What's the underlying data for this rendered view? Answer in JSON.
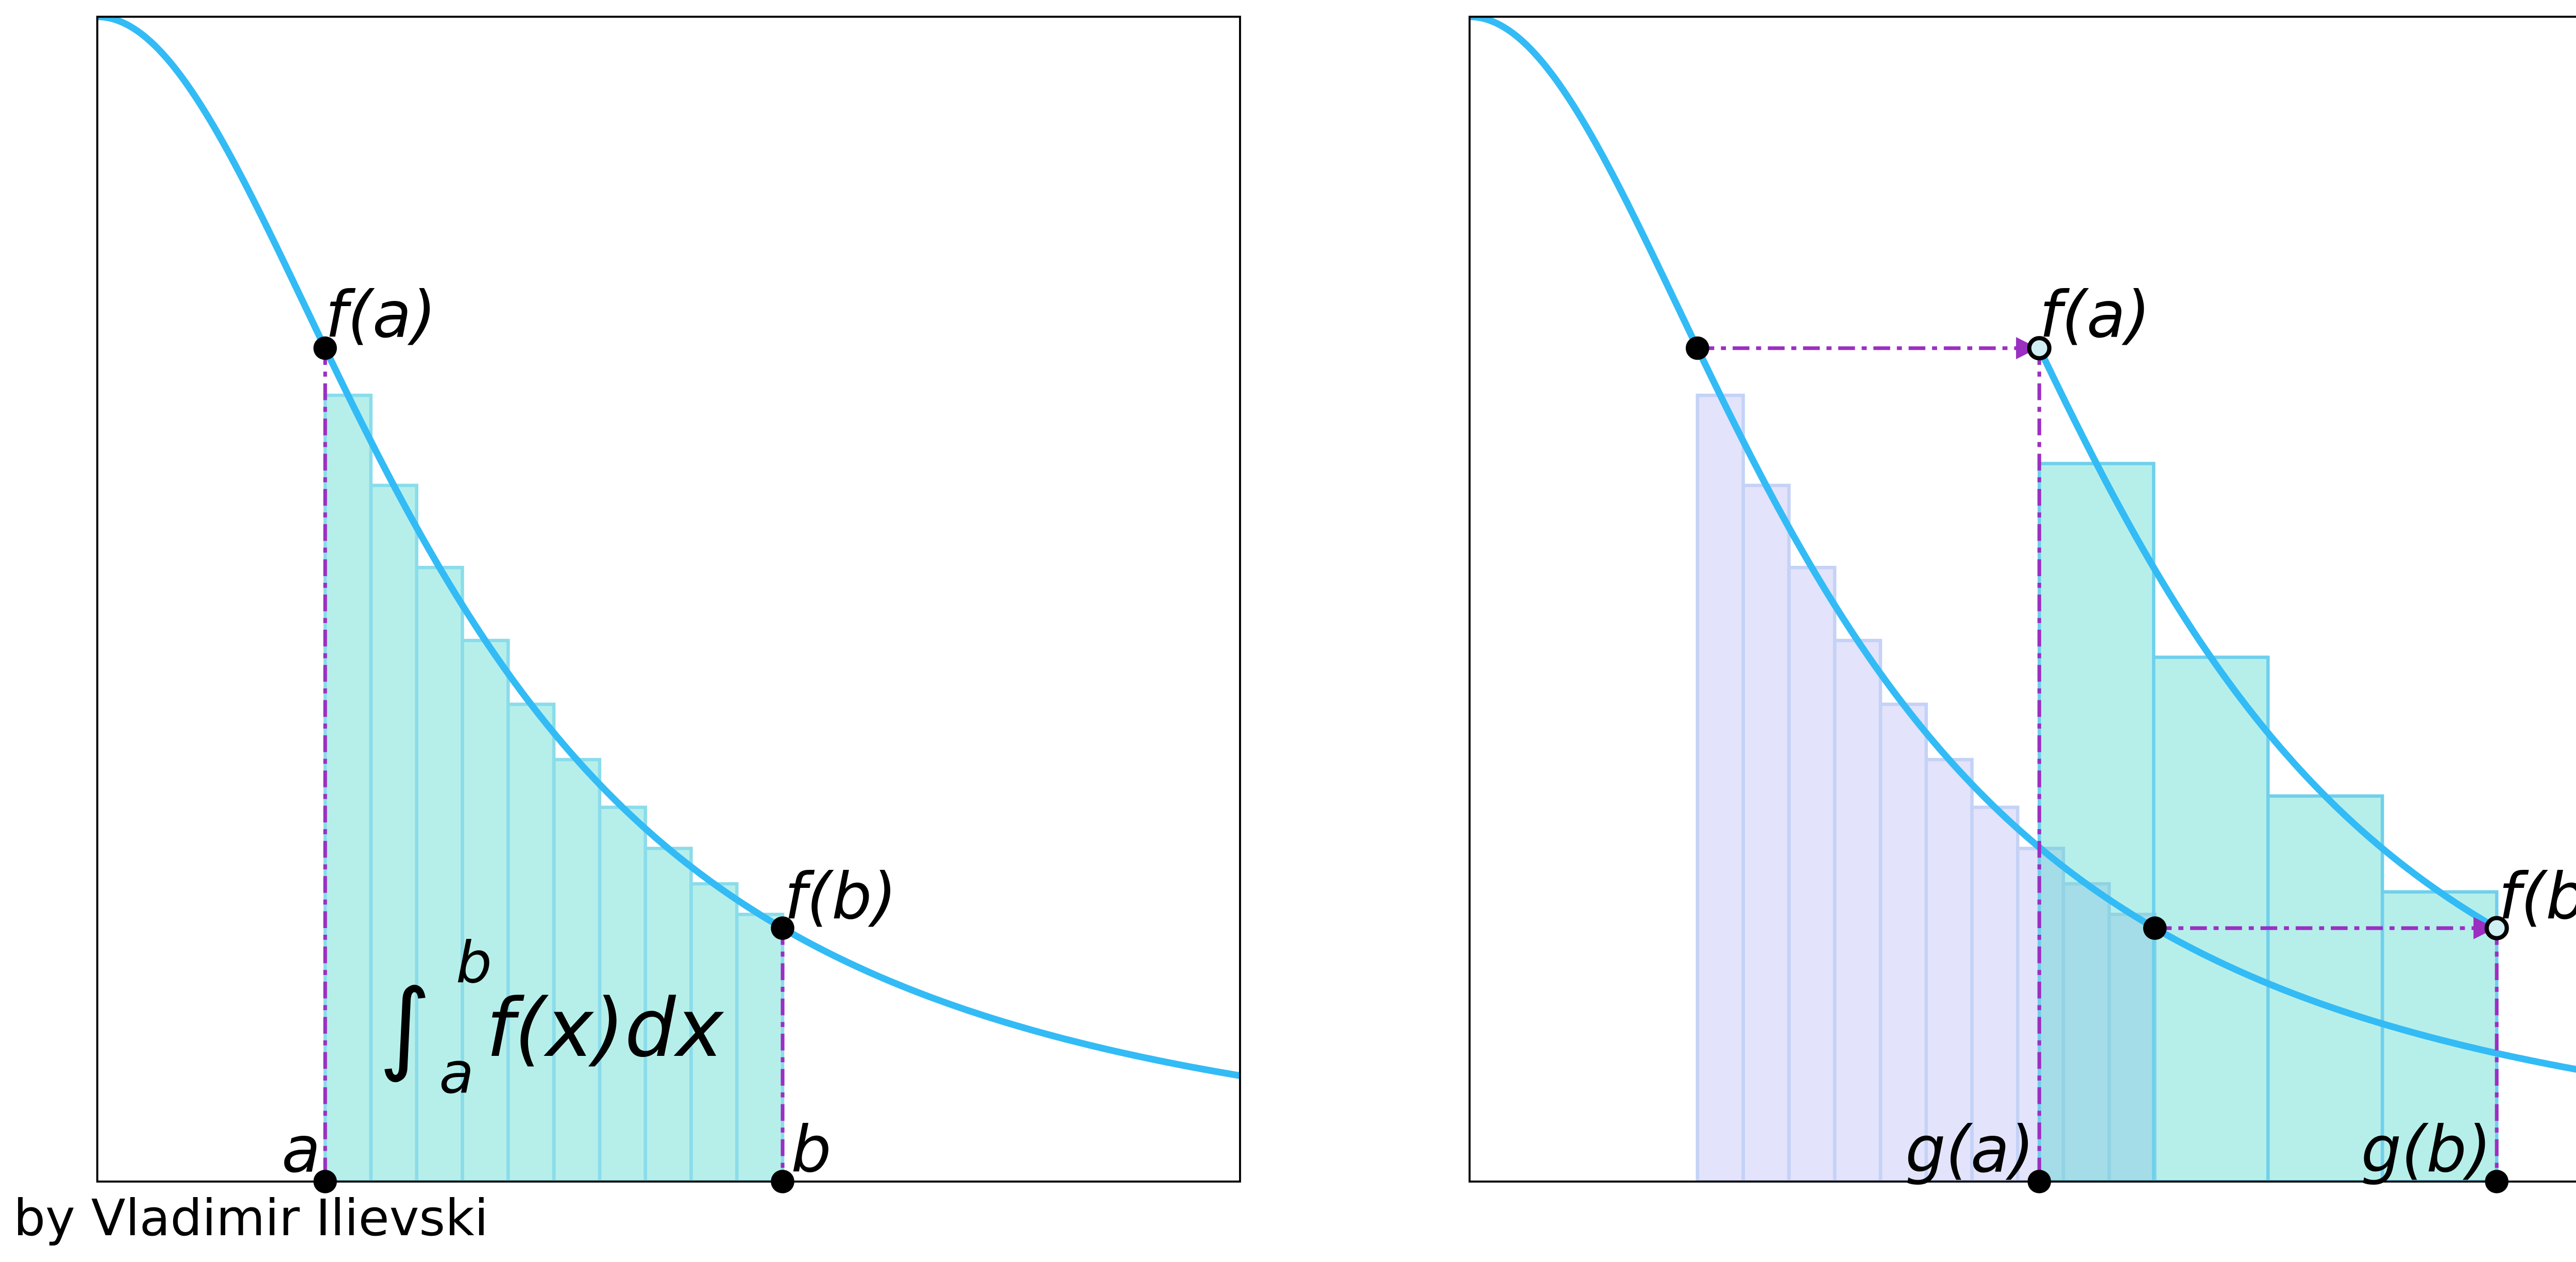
{
  "left_panel": {
    "labels": {
      "f_a": "f(a)",
      "f_b": "f(b)",
      "a": "a",
      "b": "b"
    },
    "integral": {
      "sign": "∫",
      "upper": "b",
      "lower": "a",
      "integrand": "f(x)dx"
    }
  },
  "right_panel": {
    "labels": {
      "f_a": "f(a)",
      "f_b": "f(b)",
      "g_a": "g(a)",
      "g_b": "g(b)"
    }
  },
  "credit": "by Vladimir Ilievski"
}
